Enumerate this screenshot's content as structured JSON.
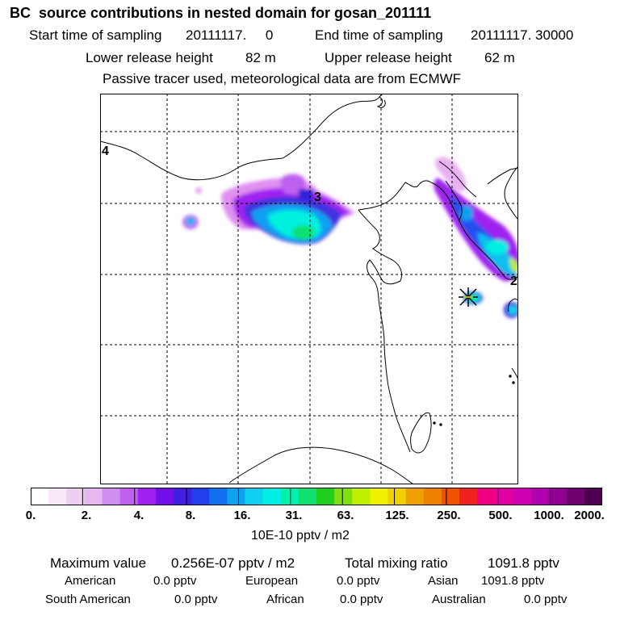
{
  "header": {
    "title": "BC  source contributions in nested domain for gosan_201111",
    "start_label": "Start time of sampling",
    "start_value": "20111117.     0",
    "end_label": "End time of sampling",
    "end_value": "20111117. 30000",
    "lower_label": "Lower release height",
    "lower_value": "82 m",
    "upper_label": "Upper release height",
    "upper_value": "62 m",
    "tracer_note": "Passive tracer used, meteorological data are from ECMWF"
  },
  "map": {
    "region_labels": [
      "4",
      "3",
      "2"
    ],
    "receptor_marker": "gosan-receptor-star"
  },
  "colorbar": {
    "colors": [
      "#ffffff",
      "#f7e7f7",
      "#efcfef",
      "#e7b7ef",
      "#d08ef0",
      "#c060f0",
      "#a020f0",
      "#7010e8",
      "#4020e0",
      "#2040f0",
      "#1070f0",
      "#10a0f0",
      "#10d0f0",
      "#00f0e8",
      "#00f0b0",
      "#10e070",
      "#20d020",
      "#80e010",
      "#c0f000",
      "#f0f000",
      "#f0d000",
      "#f0a000",
      "#f08000",
      "#f05000",
      "#f02020",
      "#f00080",
      "#e000a0",
      "#d000b0",
      "#b000b0",
      "#900090",
      "#700070",
      "#500050"
    ],
    "tick_labels": [
      "0.",
      "2.",
      "4.",
      "8.",
      "16.",
      "31.",
      "63.",
      "125.",
      "250.",
      "500.",
      "1000.",
      "2000."
    ],
    "unit_label": "10E-10 pptv / m2"
  },
  "summary": {
    "max_label": "Maximum value",
    "max_value": "0.256E-07 pptv / m2",
    "total_label": "Total mixing ratio",
    "total_value": "1091.8 pptv",
    "sources": [
      {
        "name": "American",
        "value": "0.0 pptv"
      },
      {
        "name": "European",
        "value": "0.0 pptv"
      },
      {
        "name": "Asian",
        "value": "1091.8 pptv"
      },
      {
        "name": "South American",
        "value": "0.0 pptv"
      },
      {
        "name": "African",
        "value": "0.0 pptv"
      },
      {
        "name": "Australian",
        "value": "0.0 pptv"
      }
    ]
  }
}
